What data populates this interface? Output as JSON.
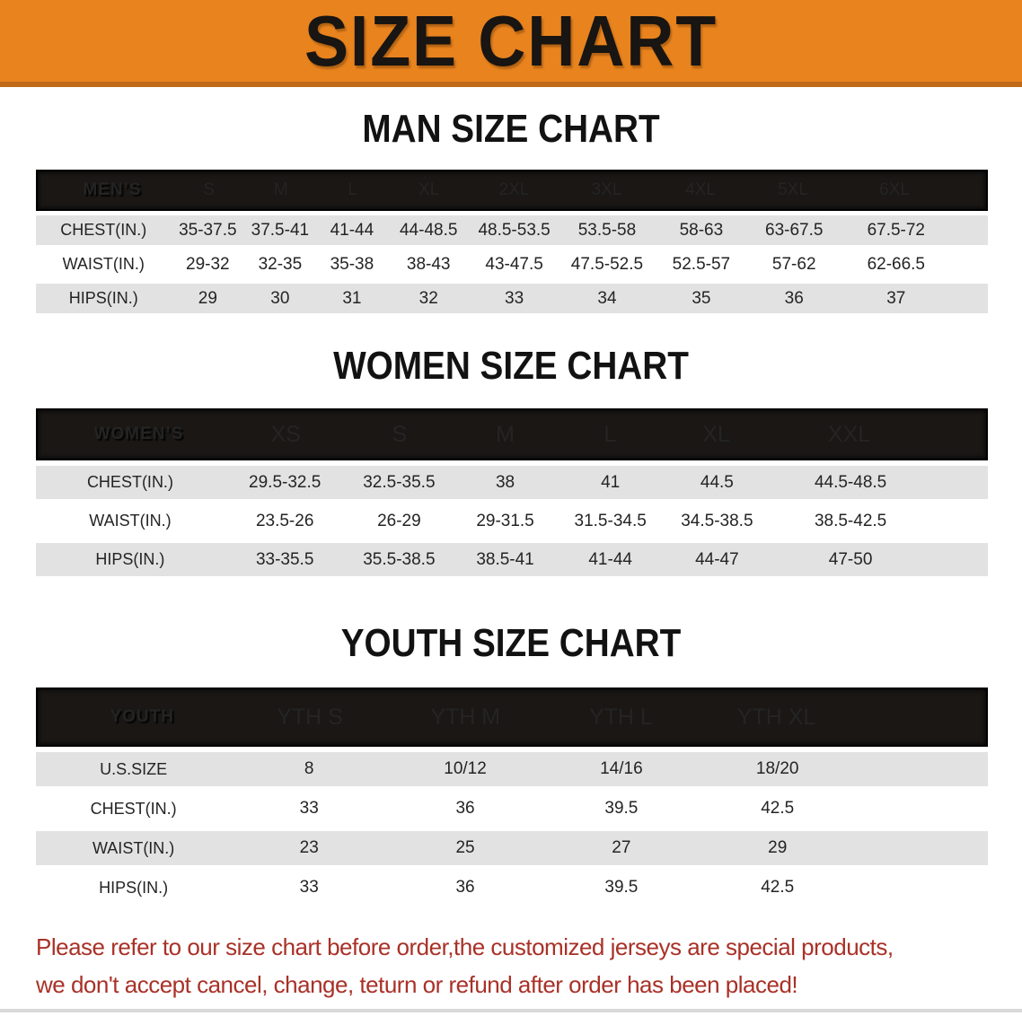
{
  "banner": {
    "title": "SIZE CHART"
  },
  "colors": {
    "banner_orange": "#E8831E",
    "banner_orange_dark": "#C06A18",
    "header_band_black": "#1A1715",
    "row_stripe_gray": "#E2E2E2",
    "disclaimer_red": "#A93127"
  },
  "sections": {
    "men": {
      "heading": "MAN SIZE CHART",
      "label": "MEN’S",
      "columns": [
        "S",
        "M",
        "L",
        "XL",
        "2XL",
        "3XL",
        "4XL",
        "5XL",
        "6XL"
      ],
      "rows": [
        {
          "label": "CHEST(IN.)",
          "values": [
            "35-37.5",
            "37.5-41",
            "41-44",
            "44-48.5",
            "48.5-53.5",
            "53.5-58",
            "58-63",
            "63-67.5",
            "67.5-72"
          ]
        },
        {
          "label": "WAIST(IN.)",
          "values": [
            "29-32",
            "32-35",
            "35-38",
            "38-43",
            "43-47.5",
            "47.5-52.5",
            "52.5-57",
            "57-62",
            "62-66.5"
          ]
        },
        {
          "label": "HIPS(IN.)",
          "values": [
            "29",
            "30",
            "31",
            "32",
            "33",
            "34",
            "35",
            "36",
            "37"
          ]
        }
      ]
    },
    "women": {
      "heading": "WOMEN SIZE CHART",
      "label": "WOMEN’S",
      "columns": [
        "XS",
        "S",
        "M",
        "L",
        "XL",
        "XXL"
      ],
      "rows": [
        {
          "label": "CHEST(IN.)",
          "values": [
            "29.5-32.5",
            "32.5-35.5",
            "38",
            "41",
            "44.5",
            "44.5-48.5"
          ]
        },
        {
          "label": "WAIST(IN.)",
          "values": [
            "23.5-26",
            "26-29",
            "29-31.5",
            "31.5-34.5",
            "34.5-38.5",
            "38.5-42.5"
          ]
        },
        {
          "label": "HIPS(IN.)",
          "values": [
            "33-35.5",
            "35.5-38.5",
            "38.5-41",
            "41-44",
            "44-47",
            "47-50"
          ]
        }
      ]
    },
    "youth": {
      "heading": "YOUTH SIZE CHART",
      "label": "YOUTH",
      "columns": [
        "YTH S",
        "YTH M",
        "YTH L",
        "YTH XL"
      ],
      "rows": [
        {
          "label": "U.S.SIZE",
          "values": [
            "8",
            "10/12",
            "14/16",
            "18/20"
          ]
        },
        {
          "label": "CHEST(IN.)",
          "values": [
            "33",
            "36",
            "39.5",
            "42.5"
          ]
        },
        {
          "label": "WAIST(IN.)",
          "values": [
            "23",
            "25",
            "27",
            "29"
          ]
        },
        {
          "label": "HIPS(IN.)",
          "values": [
            "33",
            "36",
            "39.5",
            "42.5"
          ]
        }
      ]
    }
  },
  "disclaimer": {
    "line1": "Please refer to our size chart before order,the customized jerseys are special products,",
    "line2": "we don't accept cancel, change, teturn or refund after order has been placed!"
  }
}
